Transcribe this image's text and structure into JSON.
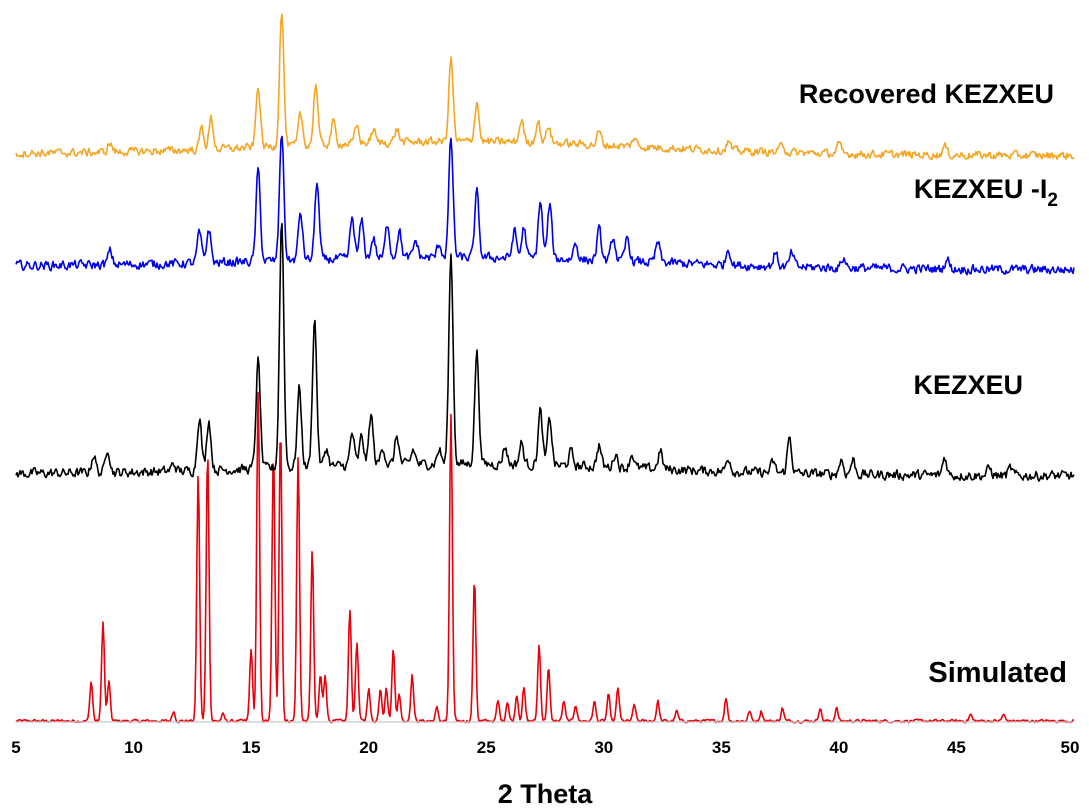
{
  "chart_data": {
    "type": "line",
    "title": "",
    "xlabel": "2 Theta",
    "ylabel": "",
    "xlim": [
      5,
      50
    ],
    "x_ticks": [
      "5",
      "10",
      "15",
      "20",
      "25",
      "30",
      "35",
      "40",
      "45",
      "50"
    ],
    "grid": false,
    "layout": "stacked, vertically offset patterns; y axis unlabeled (arbitrary intensity)",
    "series": [
      {
        "name": "Simulated",
        "label": "Simulated",
        "color": "#e8000b",
        "noise": 0.004,
        "peaks": [
          [
            8.2,
            0.12
          ],
          [
            8.7,
            0.3
          ],
          [
            8.95,
            0.12
          ],
          [
            11.7,
            0.03
          ],
          [
            12.75,
            0.75
          ],
          [
            13.15,
            0.82
          ],
          [
            13.8,
            0.02
          ],
          [
            15.0,
            0.22
          ],
          [
            15.3,
            1.0
          ],
          [
            15.95,
            0.82
          ],
          [
            16.25,
            0.9
          ],
          [
            17.0,
            0.8
          ],
          [
            17.6,
            0.52
          ],
          [
            17.95,
            0.14
          ],
          [
            18.15,
            0.14
          ],
          [
            19.2,
            0.34
          ],
          [
            19.5,
            0.24
          ],
          [
            20.0,
            0.1
          ],
          [
            20.5,
            0.1
          ],
          [
            20.75,
            0.1
          ],
          [
            21.05,
            0.22
          ],
          [
            21.3,
            0.08
          ],
          [
            21.85,
            0.14
          ],
          [
            22.9,
            0.04
          ],
          [
            23.5,
            0.93
          ],
          [
            24.5,
            0.43
          ],
          [
            25.5,
            0.06
          ],
          [
            25.9,
            0.06
          ],
          [
            26.3,
            0.08
          ],
          [
            26.6,
            0.1
          ],
          [
            27.25,
            0.23
          ],
          [
            27.65,
            0.16
          ],
          [
            28.3,
            0.06
          ],
          [
            28.8,
            0.05
          ],
          [
            29.6,
            0.06
          ],
          [
            30.2,
            0.08
          ],
          [
            30.6,
            0.1
          ],
          [
            31.3,
            0.05
          ],
          [
            32.3,
            0.06
          ],
          [
            33.1,
            0.03
          ],
          [
            35.2,
            0.07
          ],
          [
            36.2,
            0.03
          ],
          [
            36.7,
            0.03
          ],
          [
            37.6,
            0.04
          ],
          [
            39.2,
            0.04
          ],
          [
            39.9,
            0.04
          ],
          [
            45.6,
            0.02
          ],
          [
            47.0,
            0.02
          ]
        ]
      },
      {
        "name": "KEZXEU",
        "label": "KEZXEU",
        "color": "#000000",
        "noise": 0.012,
        "peaks": [
          [
            8.3,
            0.05
          ],
          [
            8.9,
            0.07
          ],
          [
            11.7,
            0.02
          ],
          [
            12.8,
            0.15
          ],
          [
            13.2,
            0.14
          ],
          [
            15.3,
            0.3
          ],
          [
            16.3,
            0.69
          ],
          [
            17.05,
            0.22
          ],
          [
            17.7,
            0.41
          ],
          [
            18.2,
            0.05
          ],
          [
            19.3,
            0.09
          ],
          [
            19.7,
            0.08
          ],
          [
            20.1,
            0.14
          ],
          [
            20.6,
            0.05
          ],
          [
            21.2,
            0.08
          ],
          [
            21.9,
            0.04
          ],
          [
            23.0,
            0.04
          ],
          [
            23.5,
            0.58
          ],
          [
            24.6,
            0.31
          ],
          [
            25.8,
            0.05
          ],
          [
            26.5,
            0.06
          ],
          [
            27.3,
            0.15
          ],
          [
            27.7,
            0.13
          ],
          [
            28.6,
            0.04
          ],
          [
            29.8,
            0.06
          ],
          [
            30.5,
            0.04
          ],
          [
            31.2,
            0.04
          ],
          [
            32.4,
            0.05
          ],
          [
            35.3,
            0.04
          ],
          [
            37.2,
            0.03
          ],
          [
            37.9,
            0.1
          ],
          [
            40.1,
            0.04
          ],
          [
            40.6,
            0.04
          ],
          [
            44.5,
            0.05
          ],
          [
            46.4,
            0.02
          ],
          [
            47.3,
            0.02
          ]
        ]
      },
      {
        "name": "KEZXEU -I2",
        "label": "KEZXEU -I",
        "label_sub": "2",
        "color": "#0000ee",
        "noise": 0.012,
        "peaks": [
          [
            9.0,
            0.04
          ],
          [
            12.8,
            0.09
          ],
          [
            13.2,
            0.1
          ],
          [
            15.3,
            0.27
          ],
          [
            16.3,
            0.38
          ],
          [
            17.1,
            0.14
          ],
          [
            17.8,
            0.23
          ],
          [
            19.3,
            0.12
          ],
          [
            19.7,
            0.11
          ],
          [
            20.2,
            0.06
          ],
          [
            20.8,
            0.1
          ],
          [
            21.3,
            0.08
          ],
          [
            22.0,
            0.05
          ],
          [
            23.0,
            0.04
          ],
          [
            23.5,
            0.35
          ],
          [
            24.6,
            0.19
          ],
          [
            26.2,
            0.08
          ],
          [
            26.6,
            0.09
          ],
          [
            27.3,
            0.17
          ],
          [
            27.7,
            0.16
          ],
          [
            28.8,
            0.05
          ],
          [
            29.8,
            0.09
          ],
          [
            30.4,
            0.07
          ],
          [
            31.0,
            0.07
          ],
          [
            32.3,
            0.06
          ],
          [
            35.3,
            0.05
          ],
          [
            37.3,
            0.04
          ],
          [
            38.0,
            0.04
          ],
          [
            40.2,
            0.03
          ],
          [
            44.6,
            0.03
          ]
        ]
      },
      {
        "name": "Recovered KEZXEU",
        "label": "Recovered KEZXEU",
        "color": "#f5a623",
        "noise": 0.008,
        "peaks": [
          [
            9.0,
            0.02
          ],
          [
            12.9,
            0.05
          ],
          [
            13.3,
            0.07
          ],
          [
            15.3,
            0.14
          ],
          [
            16.3,
            0.31
          ],
          [
            17.1,
            0.07
          ],
          [
            17.75,
            0.14
          ],
          [
            18.5,
            0.05
          ],
          [
            19.5,
            0.04
          ],
          [
            20.2,
            0.03
          ],
          [
            21.2,
            0.03
          ],
          [
            23.5,
            0.19
          ],
          [
            24.6,
            0.09
          ],
          [
            26.5,
            0.05
          ],
          [
            27.2,
            0.05
          ],
          [
            27.65,
            0.04
          ],
          [
            29.8,
            0.03
          ],
          [
            31.3,
            0.02
          ],
          [
            35.3,
            0.02
          ],
          [
            37.6,
            0.02
          ],
          [
            40.0,
            0.02
          ],
          [
            44.5,
            0.02
          ]
        ]
      }
    ]
  }
}
